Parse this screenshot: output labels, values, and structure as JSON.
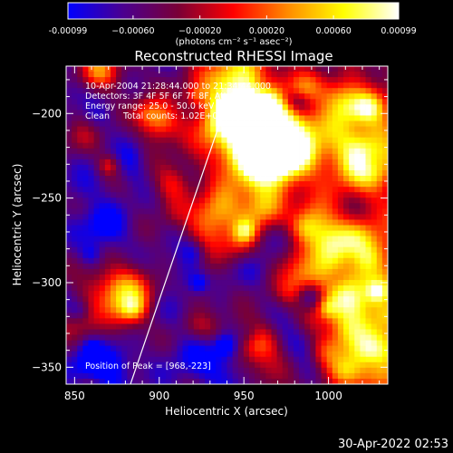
{
  "chart_data": {
    "type": "heatmap",
    "title": "Reconstructed RHESSI Image",
    "xlabel": "Heliocentric X (arcsec)",
    "ylabel": "Heliocentric Y (arcsec)",
    "xlim": [
      845,
      1035
    ],
    "ylim": [
      -360,
      -172
    ],
    "x_ticks": [
      850,
      900,
      950,
      1000
    ],
    "x_tick_labels": [
      "850",
      "900",
      "950",
      "1000"
    ],
    "y_ticks": [
      -350,
      -300,
      -250,
      -200
    ],
    "y_tick_labels": [
      "−350",
      "−300",
      "−250",
      "−200"
    ],
    "colorbar": {
      "range": [
        -0.00099,
        0.00099
      ],
      "ticks": [
        -0.00099,
        -0.0006,
        -0.0002,
        0.0002,
        0.0006,
        0.00099
      ],
      "tick_labels": [
        "-0.00099",
        "−0.00060",
        "−0.00020",
        "0.00020",
        "0.00060",
        "0.00099"
      ],
      "units_label": "(photons cm⁻² s⁻¹ asec⁻²)",
      "colors": [
        "#0000ff",
        "#4b0090",
        "#7a0036",
        "#ff0000",
        "#ff8c00",
        "#ffff00",
        "#ffffff"
      ]
    },
    "annotations": {
      "time": "10-Apr-2004 21:28:44.000 to 21:34:44.000",
      "detectors": "Detectors: 3F 4F 5F 6F 7F 8F, Att 0",
      "energy": "Energy range: 25.0 - 50.0 keV",
      "clean": "Clean     Total counts: 1.02E+05",
      "peak": "Position of Peak = [968,-223]"
    },
    "limb_line": {
      "x": [
        883,
        937
      ],
      "y": [
        -360,
        -202
      ]
    },
    "image_grid": {
      "nx": 58,
      "ny": 58
    },
    "bright_sources": [
      {
        "x": 958,
        "y": -213,
        "level": 1.0,
        "size": 22
      },
      {
        "x": 968,
        "y": -223,
        "level": 0.95,
        "size": 14
      },
      {
        "x": 948,
        "y": -185,
        "level": 0.85,
        "size": 16
      },
      {
        "x": 1020,
        "y": -225,
        "level": 0.8,
        "size": 14
      },
      {
        "x": 1010,
        "y": -300,
        "level": 0.75,
        "size": 18
      },
      {
        "x": 1022,
        "y": -340,
        "level": 0.75,
        "size": 14
      },
      {
        "x": 900,
        "y": -205,
        "level": 0.6,
        "size": 8
      },
      {
        "x": 935,
        "y": -255,
        "level": 0.65,
        "size": 10
      },
      {
        "x": 880,
        "y": -315,
        "level": 0.55,
        "size": 10
      },
      {
        "x": 865,
        "y": -175,
        "level": 0.55,
        "size": 8
      },
      {
        "x": 990,
        "y": -265,
        "level": 0.5,
        "size": 10
      },
      {
        "x": 955,
        "y": -335,
        "level": 0.5,
        "size": 10
      }
    ]
  },
  "footer": {
    "timestamp": "30-Apr-2022 02:53"
  }
}
